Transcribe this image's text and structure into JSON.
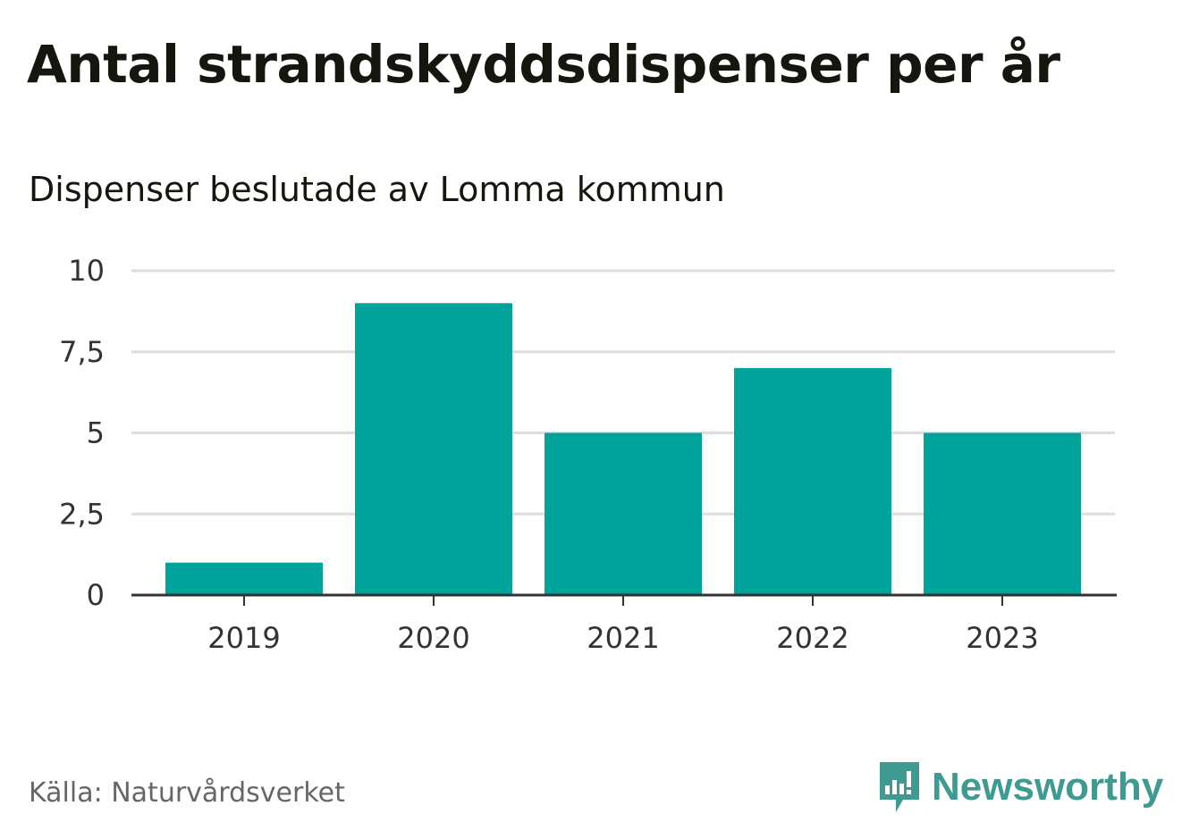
{
  "header": {
    "title": "Antal strandskyddsdispenser per år",
    "subtitle": "Dispenser beslutade av Lomma kommun"
  },
  "footer": {
    "source": "Källa: Naturvårdsverket",
    "brand": "Newsworthy",
    "logo_icon": "bar-chart-speech-bubble-icon"
  },
  "colors": {
    "bar": "#00a39a",
    "grid": "#dddddd",
    "axis": "#333333",
    "brand": "#3f9a92"
  },
  "chart_data": {
    "type": "bar",
    "title": "Antal strandskyddsdispenser per år",
    "subtitle": "Dispenser beslutade av Lomma kommun",
    "categories": [
      "2019",
      "2020",
      "2021",
      "2022",
      "2023"
    ],
    "values": [
      1,
      9,
      5,
      7,
      5
    ],
    "xlabel": "",
    "ylabel": "",
    "ylim": [
      0,
      10
    ],
    "yticks": [
      0,
      2.5,
      5,
      7.5,
      10
    ],
    "ytick_labels": [
      "0",
      "2,5",
      "5",
      "7,5",
      "10"
    ],
    "grid": true,
    "legend": "none"
  }
}
